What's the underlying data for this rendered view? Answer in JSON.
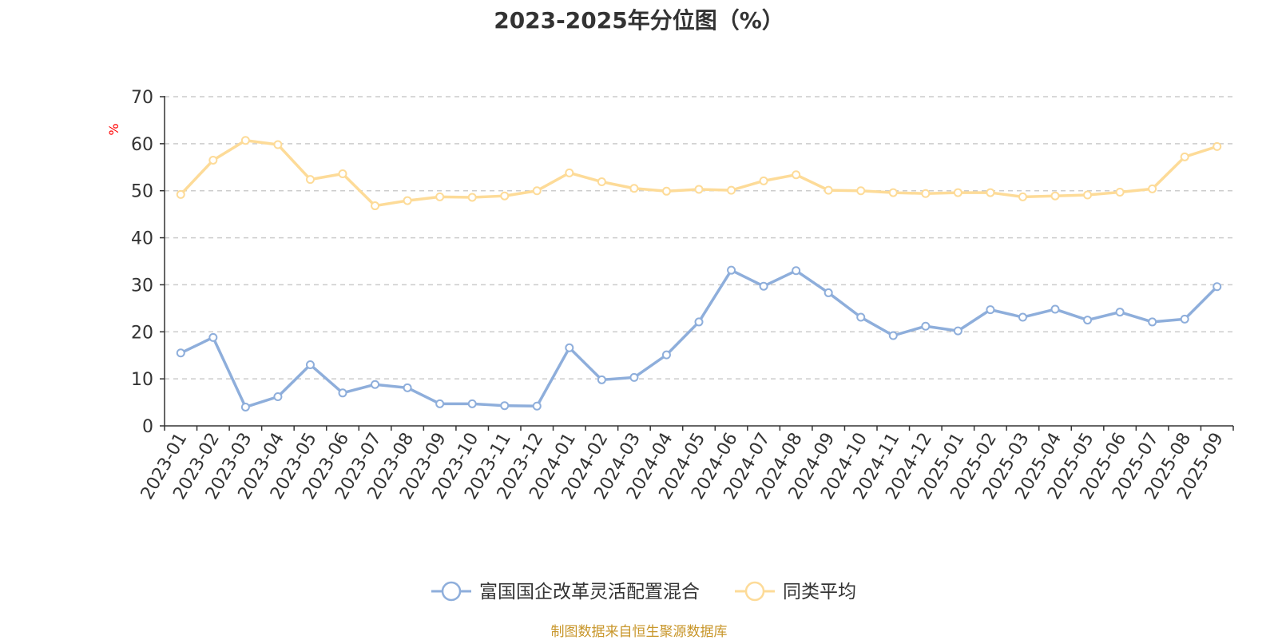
{
  "chart_data": {
    "type": "line",
    "title": "2023-2025年分位图（%）",
    "ylabel": "%",
    "xlabel": "",
    "ylim": [
      0,
      70
    ],
    "yticks": [
      0,
      10,
      20,
      30,
      40,
      50,
      60,
      70
    ],
    "grid": true,
    "legend_position": "bottom",
    "categories": [
      "2023-01",
      "2023-02",
      "2023-03",
      "2023-04",
      "2023-05",
      "2023-06",
      "2023-07",
      "2023-08",
      "2023-09",
      "2023-10",
      "2023-11",
      "2023-12",
      "2024-01",
      "2024-02",
      "2024-03",
      "2024-04",
      "2024-05",
      "2024-06",
      "2024-07",
      "2024-08",
      "2024-09",
      "2024-10",
      "2024-11",
      "2024-12",
      "2025-01",
      "2025-02",
      "2025-03",
      "2025-04",
      "2025-05",
      "2025-06",
      "2025-07",
      "2025-08",
      "2025-09"
    ],
    "series": [
      {
        "name": "富国国企改革灵活配置混合",
        "color": "#8eaedb",
        "values": [
          15.5,
          18.8,
          4.0,
          6.2,
          13.0,
          7.0,
          8.8,
          8.1,
          4.7,
          4.7,
          4.3,
          4.2,
          16.6,
          9.8,
          10.3,
          15.1,
          22.1,
          33.1,
          29.7,
          33.0,
          28.3,
          23.1,
          19.2,
          21.2,
          20.2,
          24.7,
          23.1,
          24.8,
          22.5,
          24.2,
          22.1,
          22.7,
          29.6
        ]
      },
      {
        "name": "同类平均",
        "color": "#fddb98",
        "values": [
          49.2,
          56.5,
          60.7,
          59.8,
          52.4,
          53.6,
          46.8,
          47.9,
          48.7,
          48.6,
          48.9,
          50.0,
          53.8,
          51.9,
          50.5,
          49.9,
          50.3,
          50.1,
          52.1,
          53.4,
          50.1,
          50.0,
          49.6,
          49.4,
          49.6,
          49.6,
          48.7,
          48.9,
          49.1,
          49.7,
          50.4,
          57.2,
          59.4
        ]
      }
    ]
  },
  "source_note": "制图数据来自恒生聚源数据库"
}
